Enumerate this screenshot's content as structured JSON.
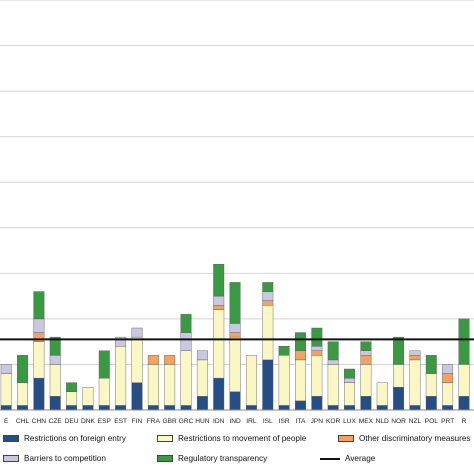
{
  "chart_data": {
    "type": "bar",
    "stacked": true,
    "categories": [
      "E",
      "CHL",
      "CHN",
      "CZE",
      "DEU",
      "DNK",
      "ESP",
      "EST",
      "FIN",
      "FRA",
      "GBR",
      "GRC",
      "HUN",
      "IDN",
      "IND",
      "IRL",
      "ISL",
      "ISR",
      "ITA",
      "JPN",
      "KOR",
      "LUX",
      "MEX",
      "NLD",
      "NOR",
      "NZL",
      "POL",
      "PRT",
      "R"
    ],
    "series": [
      {
        "name": "Restrictions on foreign entry",
        "color": "#264e86",
        "values": [
          0.01,
          0.01,
          0.07,
          0.03,
          0.01,
          0.01,
          0.01,
          0.01,
          0.06,
          0.01,
          0.01,
          0.01,
          0.03,
          0.07,
          0.04,
          0.01,
          0.11,
          0.01,
          0.02,
          0.03,
          0.01,
          0.01,
          0.03,
          0.01,
          0.05,
          0.01,
          0.03,
          0.01,
          0.03
        ]
      },
      {
        "name": "Restrictions to movement of people",
        "color": "#fbf7c4",
        "values": [
          0.07,
          0.05,
          0.08,
          0.07,
          0.03,
          0.04,
          0.06,
          0.13,
          0.1,
          0.09,
          0.09,
          0.12,
          0.08,
          0.15,
          0.12,
          0.11,
          0.12,
          0.11,
          0.09,
          0.09,
          0.09,
          0.05,
          0.07,
          0.05,
          0.05,
          0.1,
          0.05,
          0.05,
          0.07
        ]
      },
      {
        "name": "Other discriminatory measures",
        "color": "#f4a261",
        "values": [
          0.0,
          0.0,
          0.02,
          0.0,
          0.0,
          0.0,
          0.0,
          0.0,
          0.0,
          0.02,
          0.02,
          0.0,
          0.0,
          0.01,
          0.01,
          0.0,
          0.01,
          0.0,
          0.02,
          0.01,
          0.0,
          0.0,
          0.02,
          0.0,
          0.0,
          0.01,
          0.0,
          0.02,
          0.0
        ]
      },
      {
        "name": "Barriers to competition",
        "color": "#c9c8de",
        "values": [
          0.02,
          0.0,
          0.03,
          0.02,
          0.0,
          0.0,
          0.0,
          0.02,
          0.02,
          0.0,
          0.0,
          0.04,
          0.02,
          0.02,
          0.02,
          0.0,
          0.02,
          0.0,
          0.0,
          0.01,
          0.01,
          0.01,
          0.01,
          0.0,
          0.0,
          0.01,
          0.0,
          0.02,
          0.0
        ]
      },
      {
        "name": "Regulatory transparency",
        "color": "#3a9a44",
        "values": [
          0.0,
          0.06,
          0.06,
          0.04,
          0.02,
          0.0,
          0.06,
          0.0,
          0.0,
          0.0,
          0.0,
          0.04,
          0.0,
          0.07,
          0.09,
          0.0,
          0.02,
          0.02,
          0.04,
          0.04,
          0.04,
          0.02,
          0.02,
          0.0,
          0.06,
          0.0,
          0.04,
          0.0,
          0.1
        ]
      }
    ],
    "average": {
      "name": "Average",
      "value": 0.155,
      "color": "#111111"
    },
    "ylim": [
      0,
      0.9
    ],
    "grid": true,
    "legend_position": "bottom"
  },
  "legend": {
    "items": [
      {
        "label": "Restrictions on foreign entry",
        "color": "#264e86",
        "kind": "box"
      },
      {
        "label": "Restrictions to movement of people",
        "color": "#fbf7c4",
        "kind": "box"
      },
      {
        "label": "Other discriminatory measures",
        "color": "#f4a261",
        "kind": "box"
      },
      {
        "label": "Barriers to competition",
        "color": "#c9c8de",
        "kind": "box"
      },
      {
        "label": "Regulatory transparency",
        "color": "#3a9a44",
        "kind": "box"
      },
      {
        "label": "Average",
        "color": "#111111",
        "kind": "line"
      }
    ]
  }
}
